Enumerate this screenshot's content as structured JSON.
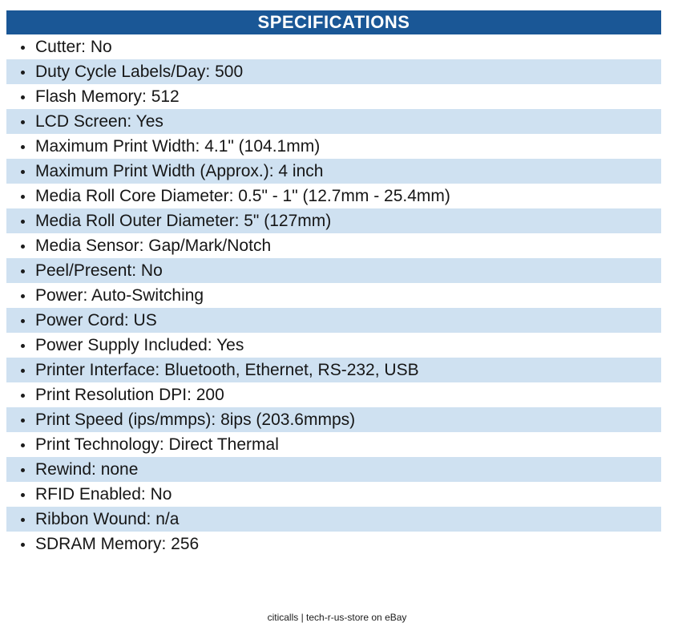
{
  "header": {
    "title": "SPECIFICATIONS"
  },
  "specs": [
    "Cutter: No",
    "Duty Cycle Labels/Day: 500",
    "Flash Memory: 512",
    "LCD Screen: Yes",
    "Maximum Print Width: 4.1\" (104.1mm)",
    "Maximum Print Width (Approx.): 4 inch",
    "Media Roll Core Diameter: 0.5\" - 1\" (12.7mm - 25.4mm)",
    "Media Roll Outer Diameter: 5\" (127mm)",
    "Media Sensor: Gap/Mark/Notch",
    "Peel/Present: No",
    "Power: Auto-Switching",
    "Power Cord: US",
    "Power Supply Included: Yes",
    "Printer Interface: Bluetooth, Ethernet, RS-232, USB",
    "Print Resolution DPI: 200",
    "Print Speed (ips/mmps): 8ips (203.6mmps)",
    "Print Technology: Direct Thermal",
    "Rewind: none",
    "RFID Enabled: No",
    "Ribbon Wound: n/a",
    "SDRAM Memory: 256"
  ],
  "footer": {
    "text": "citicalls | tech-r-us-store on eBay"
  },
  "colors": {
    "header_bg": "#1A5796",
    "stripe_bg": "#CFE1F1",
    "text": "#161616"
  }
}
